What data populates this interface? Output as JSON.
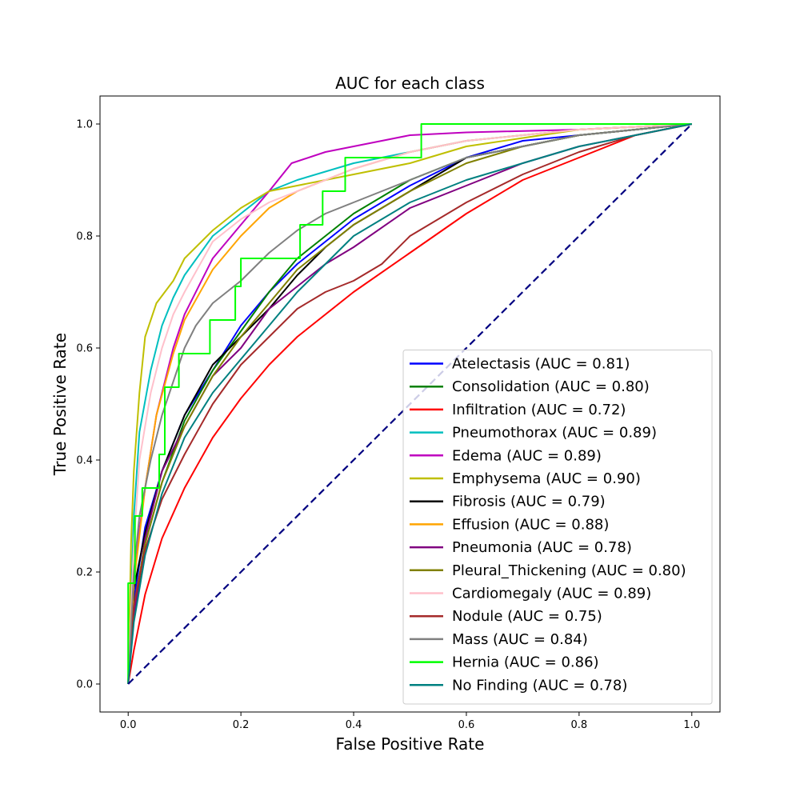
{
  "chart_data": {
    "type": "line",
    "title": "AUC for each class",
    "xlabel": "False Positive Rate",
    "ylabel": "True Positive Rate",
    "xlim": [
      -0.05,
      1.05
    ],
    "ylim": [
      -0.05,
      1.05
    ],
    "xticks": [
      "0.0",
      "0.2",
      "0.4",
      "0.6",
      "0.8",
      "1.0"
    ],
    "yticks": [
      "0.0",
      "0.2",
      "0.4",
      "0.6",
      "0.8",
      "1.0"
    ],
    "legend_position": "lower-right",
    "chance_line": {
      "x": [
        0,
        1
      ],
      "y": [
        0,
        1
      ],
      "color": "#000080",
      "style": "dashed"
    },
    "series": [
      {
        "name": "Atelectasis (AUC = 0.81)",
        "color": "#0000ff",
        "x": [
          0,
          0.01,
          0.03,
          0.06,
          0.1,
          0.15,
          0.2,
          0.25,
          0.3,
          0.4,
          0.5,
          0.6,
          0.7,
          0.8,
          0.9,
          1.0
        ],
        "y": [
          0,
          0.15,
          0.28,
          0.38,
          0.48,
          0.56,
          0.64,
          0.7,
          0.75,
          0.83,
          0.89,
          0.94,
          0.97,
          0.98,
          0.99,
          1.0
        ]
      },
      {
        "name": "Consolidation (AUC = 0.80)",
        "color": "#008000",
        "x": [
          0,
          0.01,
          0.03,
          0.06,
          0.1,
          0.15,
          0.2,
          0.25,
          0.3,
          0.4,
          0.5,
          0.6,
          0.7,
          0.8,
          0.9,
          1.0
        ],
        "y": [
          0,
          0.12,
          0.25,
          0.36,
          0.47,
          0.56,
          0.63,
          0.7,
          0.76,
          0.84,
          0.9,
          0.94,
          0.96,
          0.98,
          0.99,
          1.0
        ]
      },
      {
        "name": "Infiltration (AUC = 0.72)",
        "color": "#ff0000",
        "x": [
          0,
          0.01,
          0.03,
          0.06,
          0.1,
          0.15,
          0.2,
          0.25,
          0.3,
          0.4,
          0.5,
          0.6,
          0.7,
          0.8,
          0.9,
          1.0
        ],
        "y": [
          0,
          0.06,
          0.16,
          0.26,
          0.35,
          0.44,
          0.51,
          0.57,
          0.62,
          0.7,
          0.77,
          0.84,
          0.9,
          0.94,
          0.98,
          1.0
        ]
      },
      {
        "name": "Pneumothorax (AUC = 0.89)",
        "color": "#00bfbf",
        "x": [
          0,
          0.01,
          0.02,
          0.04,
          0.06,
          0.08,
          0.1,
          0.15,
          0.2,
          0.25,
          0.3,
          0.4,
          0.5,
          0.6,
          0.8,
          1.0
        ],
        "y": [
          0,
          0.3,
          0.45,
          0.56,
          0.64,
          0.69,
          0.73,
          0.8,
          0.84,
          0.88,
          0.9,
          0.93,
          0.95,
          0.97,
          0.99,
          1.0
        ]
      },
      {
        "name": "Edema (AUC = 0.89)",
        "color": "#bf00bf",
        "x": [
          0,
          0.01,
          0.03,
          0.05,
          0.08,
          0.1,
          0.15,
          0.2,
          0.25,
          0.29,
          0.35,
          0.4,
          0.45,
          0.5,
          0.6,
          0.8,
          1.0
        ],
        "y": [
          0,
          0.2,
          0.35,
          0.48,
          0.6,
          0.66,
          0.76,
          0.82,
          0.88,
          0.93,
          0.95,
          0.96,
          0.97,
          0.98,
          0.985,
          0.99,
          1.0
        ]
      },
      {
        "name": "Emphysema (AUC = 0.90)",
        "color": "#bfbf00",
        "x": [
          0,
          0.005,
          0.01,
          0.02,
          0.03,
          0.05,
          0.08,
          0.1,
          0.15,
          0.2,
          0.25,
          0.3,
          0.4,
          0.5,
          0.6,
          0.8,
          1.0
        ],
        "y": [
          0,
          0.25,
          0.38,
          0.52,
          0.62,
          0.68,
          0.72,
          0.76,
          0.81,
          0.85,
          0.88,
          0.89,
          0.91,
          0.93,
          0.96,
          0.99,
          1.0
        ]
      },
      {
        "name": "Fibrosis (AUC = 0.79)",
        "color": "#000000",
        "x": [
          0,
          0.01,
          0.03,
          0.06,
          0.1,
          0.15,
          0.2,
          0.25,
          0.3,
          0.35,
          0.4,
          0.5,
          0.6,
          0.7,
          0.8,
          0.9,
          1.0
        ],
        "y": [
          0,
          0.17,
          0.27,
          0.38,
          0.48,
          0.57,
          0.62,
          0.67,
          0.73,
          0.78,
          0.82,
          0.88,
          0.94,
          0.96,
          0.98,
          0.99,
          1.0
        ]
      },
      {
        "name": "Effusion (AUC = 0.88)",
        "color": "#ffa500",
        "x": [
          0,
          0.01,
          0.03,
          0.05,
          0.08,
          0.1,
          0.15,
          0.2,
          0.25,
          0.3,
          0.4,
          0.5,
          0.6,
          0.7,
          0.8,
          1.0
        ],
        "y": [
          0,
          0.18,
          0.35,
          0.48,
          0.59,
          0.65,
          0.74,
          0.8,
          0.85,
          0.88,
          0.92,
          0.95,
          0.97,
          0.98,
          0.99,
          1.0
        ]
      },
      {
        "name": "Pneumonia (AUC = 0.78)",
        "color": "#800080",
        "x": [
          0,
          0.01,
          0.03,
          0.06,
          0.1,
          0.15,
          0.2,
          0.25,
          0.3,
          0.35,
          0.4,
          0.5,
          0.6,
          0.7,
          0.8,
          0.9,
          1.0
        ],
        "y": [
          0,
          0.12,
          0.26,
          0.38,
          0.46,
          0.55,
          0.6,
          0.67,
          0.71,
          0.75,
          0.78,
          0.85,
          0.89,
          0.93,
          0.96,
          0.98,
          1.0
        ]
      },
      {
        "name": "Pleural_Thickening (AUC = 0.80)",
        "color": "#808000",
        "x": [
          0,
          0.01,
          0.03,
          0.06,
          0.1,
          0.15,
          0.2,
          0.25,
          0.3,
          0.4,
          0.5,
          0.6,
          0.7,
          0.8,
          0.9,
          1.0
        ],
        "y": [
          0,
          0.14,
          0.25,
          0.36,
          0.46,
          0.55,
          0.62,
          0.68,
          0.74,
          0.82,
          0.88,
          0.93,
          0.96,
          0.98,
          0.99,
          1.0
        ]
      },
      {
        "name": "Cardiomegaly (AUC = 0.89)",
        "color": "#ffc0cb",
        "x": [
          0,
          0.01,
          0.02,
          0.04,
          0.06,
          0.08,
          0.1,
          0.15,
          0.2,
          0.25,
          0.3,
          0.4,
          0.5,
          0.6,
          0.8,
          1.0
        ],
        "y": [
          0,
          0.25,
          0.4,
          0.52,
          0.6,
          0.66,
          0.7,
          0.79,
          0.83,
          0.86,
          0.88,
          0.92,
          0.95,
          0.97,
          0.99,
          1.0
        ]
      },
      {
        "name": "Nodule (AUC = 0.75)",
        "color": "#a52a2a",
        "x": [
          0,
          0.01,
          0.03,
          0.06,
          0.1,
          0.15,
          0.2,
          0.25,
          0.3,
          0.35,
          0.4,
          0.45,
          0.5,
          0.6,
          0.7,
          0.8,
          0.9,
          1.0
        ],
        "y": [
          0,
          0.14,
          0.24,
          0.33,
          0.41,
          0.5,
          0.57,
          0.62,
          0.67,
          0.7,
          0.72,
          0.75,
          0.8,
          0.86,
          0.91,
          0.95,
          0.98,
          1.0
        ]
      },
      {
        "name": "Mass (AUC = 0.84)",
        "color": "#808080",
        "x": [
          0,
          0.01,
          0.02,
          0.04,
          0.06,
          0.08,
          0.1,
          0.12,
          0.15,
          0.2,
          0.25,
          0.3,
          0.35,
          0.4,
          0.5,
          0.6,
          0.8,
          1.0
        ],
        "y": [
          0,
          0.2,
          0.3,
          0.4,
          0.48,
          0.54,
          0.6,
          0.64,
          0.68,
          0.72,
          0.77,
          0.81,
          0.84,
          0.86,
          0.9,
          0.94,
          0.98,
          1.0
        ]
      },
      {
        "name": "Hernia (AUC = 0.86)",
        "color": "#00ff00",
        "x": [
          0,
          0,
          0.012,
          0.012,
          0.025,
          0.025,
          0.055,
          0.055,
          0.065,
          0.065,
          0.09,
          0.09,
          0.145,
          0.145,
          0.19,
          0.19,
          0.2,
          0.2,
          0.305,
          0.305,
          0.345,
          0.345,
          0.385,
          0.385,
          0.52,
          0.52,
          1.0
        ],
        "y": [
          0,
          0.18,
          0.18,
          0.3,
          0.3,
          0.35,
          0.35,
          0.41,
          0.41,
          0.53,
          0.53,
          0.59,
          0.59,
          0.65,
          0.65,
          0.71,
          0.71,
          0.76,
          0.76,
          0.82,
          0.82,
          0.88,
          0.88,
          0.94,
          0.94,
          1.0,
          1.0
        ]
      },
      {
        "name": "No Finding (AUC = 0.78)",
        "color": "#008080",
        "x": [
          0,
          0.01,
          0.03,
          0.06,
          0.1,
          0.15,
          0.2,
          0.25,
          0.3,
          0.35,
          0.4,
          0.5,
          0.6,
          0.7,
          0.8,
          0.9,
          1.0
        ],
        "y": [
          0,
          0.11,
          0.23,
          0.34,
          0.44,
          0.52,
          0.58,
          0.64,
          0.7,
          0.75,
          0.8,
          0.86,
          0.9,
          0.93,
          0.96,
          0.98,
          1.0
        ]
      }
    ]
  }
}
